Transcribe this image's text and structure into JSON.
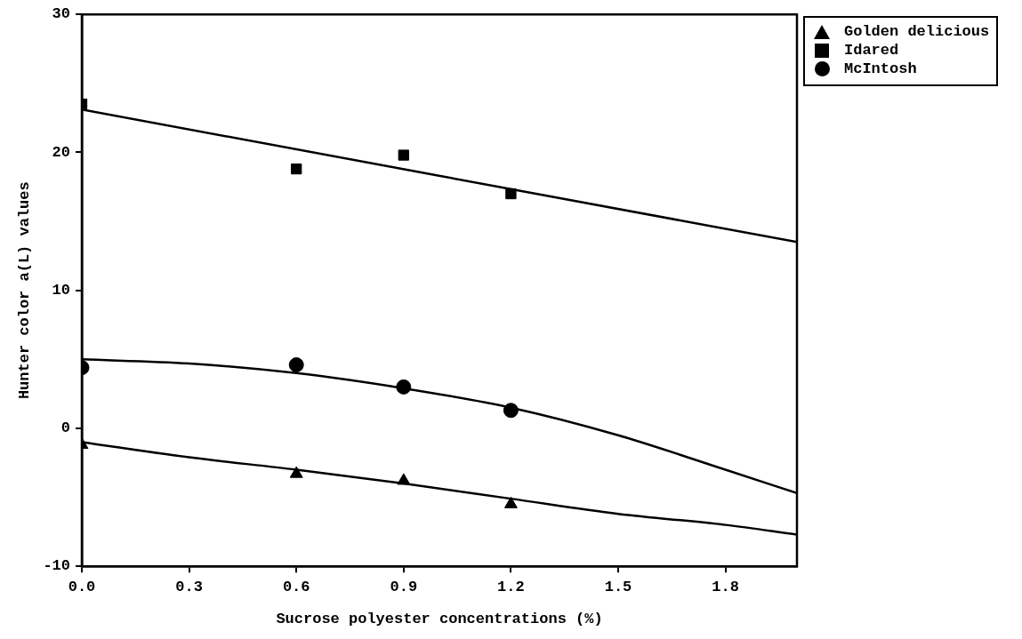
{
  "chart_data": {
    "type": "scatter",
    "xlabel": "Sucrose polyester concentrations (%)",
    "ylabel": "Hunter color a(L) values",
    "xlim": [
      0,
      2.0
    ],
    "xticks": [
      {
        "value": 0,
        "label": "0.0"
      },
      {
        "value": 0.3,
        "label": "0.3"
      },
      {
        "value": 0.6,
        "label": "0.6"
      },
      {
        "value": 0.9,
        "label": "0.9"
      },
      {
        "value": 1.2,
        "label": "1.2"
      },
      {
        "value": 1.5,
        "label": "1.5"
      },
      {
        "value": 1.8,
        "label": "1.8"
      }
    ],
    "ylim": [
      -10,
      30
    ],
    "yticks": [
      -10,
      0,
      10,
      20,
      30
    ],
    "legend": "top right",
    "series": [
      {
        "name": "Golden delicious",
        "color": "#000000",
        "marker": "triangle",
        "x": [
          0,
          0.6,
          0.9,
          1.2
        ],
        "values": [
          -1.2,
          -3.3,
          -3.8,
          -5.5
        ]
      },
      {
        "name": "Idared",
        "color": "#000000",
        "marker": "square",
        "x": [
          0,
          0.6,
          0.9,
          1.2
        ],
        "values": [
          23.5,
          18.8,
          19.8,
          17.0
        ]
      },
      {
        "name": "McIntosh",
        "color": "#000000",
        "marker": "circle",
        "x": [
          0,
          0.6,
          0.9,
          1.2
        ],
        "values": [
          4.4,
          4.6,
          3.0,
          1.3
        ]
      },
      {
        "type": "line",
        "color": "#000000",
        "marker": "none",
        "x": [
          0,
          0.3,
          0.6,
          0.9,
          1.2,
          1.5,
          1.8,
          2.0
        ],
        "values": [
          -1.0,
          -2.1,
          -3.0,
          -4.0,
          -5.1,
          -6.2,
          -7.0,
          -7.7
        ]
      },
      {
        "type": "line",
        "color": "#000000",
        "marker": "none",
        "x": [
          0,
          2.0
        ],
        "values": [
          23.1,
          13.5
        ]
      },
      {
        "type": "line",
        "color": "#000000",
        "marker": "none",
        "x": [
          0,
          0.3,
          0.6,
          0.9,
          1.2,
          1.5,
          1.8,
          2.0
        ],
        "values": [
          5.0,
          4.7,
          4.0,
          2.9,
          1.5,
          -0.5,
          -3.0,
          -4.7
        ]
      }
    ]
  }
}
